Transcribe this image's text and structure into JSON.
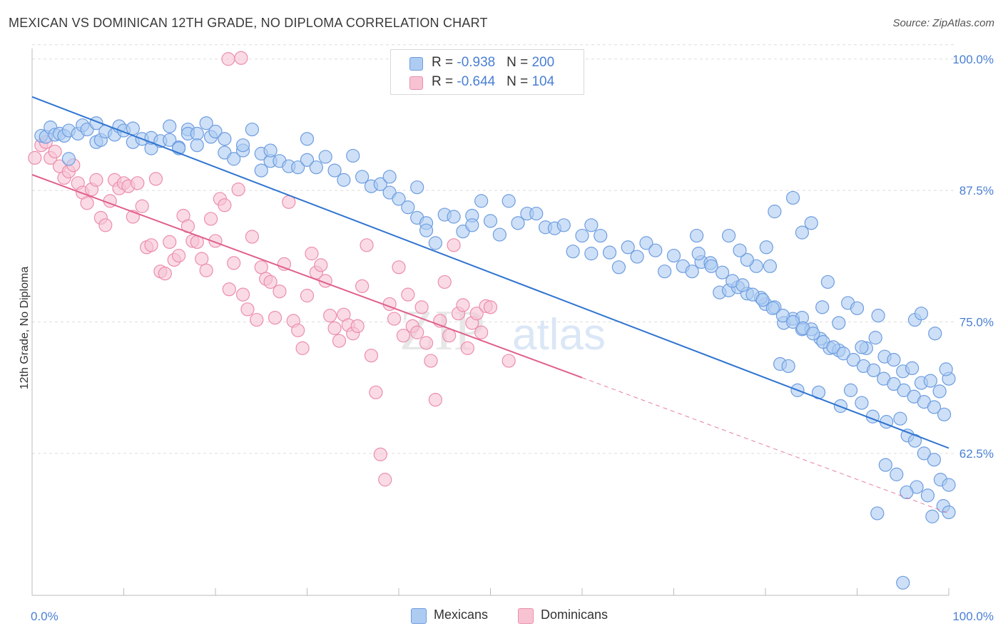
{
  "title": "MEXICAN VS DOMINICAN 12TH GRADE, NO DIPLOMA CORRELATION CHART",
  "source": "Source: ZipAtlas.com",
  "watermark": "ZIPatlas",
  "colors": {
    "mexicans_fill": "#aecbf2",
    "mexicans_stroke": "#6d9de0",
    "mexicans_line": "#2f74d0",
    "dominicans_fill": "#f7c3d3",
    "dominicans_stroke": "#ec8eaa",
    "dominicans_line": "#e0608a",
    "tick_text": "#4a7fd4",
    "grid": "#dddddd"
  },
  "legend": {
    "rows": [
      {
        "r_label": "R = ",
        "r_value": "-0.938",
        "n_label": "N = ",
        "n_value": "200"
      },
      {
        "r_label": "R = ",
        "r_value": "-0.644",
        "n_label": "N = ",
        "n_value": "104"
      }
    ]
  },
  "bottom_legend": {
    "mexicans": "Mexicans",
    "dominicans": "Dominicans"
  },
  "chart_data": {
    "type": "scatter",
    "xlabel": "",
    "ylabel": "12th Grade, No Diploma",
    "xlim": [
      0,
      100
    ],
    "ylim": [
      49,
      101
    ],
    "x_tick_labels": [
      "0.0%",
      "100.0%"
    ],
    "y_ticks": [
      62.5,
      75.0,
      87.5,
      100.0
    ],
    "y_tick_labels": [
      "62.5%",
      "75.0%",
      "87.5%",
      "100.0%"
    ],
    "grid": "horizontal dashed",
    "series": [
      {
        "name": "Mexicans",
        "R": -0.938,
        "N": 200,
        "trend": {
          "x": [
            0,
            100
          ],
          "y": [
            96.4,
            63.0
          ]
        },
        "points": [
          [
            1,
            92.7
          ],
          [
            1.5,
            92.6
          ],
          [
            2,
            93.5
          ],
          [
            2.5,
            92.8
          ],
          [
            3,
            92.9
          ],
          [
            3.5,
            92.7
          ],
          [
            4,
            93.2
          ],
          [
            4,
            90.5
          ],
          [
            5,
            92.9
          ],
          [
            5.5,
            93.7
          ],
          [
            6,
            93.3
          ],
          [
            7,
            92.1
          ],
          [
            7,
            93.9
          ],
          [
            7.5,
            92.3
          ],
          [
            8,
            93.1
          ],
          [
            9,
            92.8
          ],
          [
            9.5,
            93.6
          ],
          [
            10,
            93.2
          ],
          [
            11,
            92.1
          ],
          [
            11,
            93.4
          ],
          [
            12,
            92.4
          ],
          [
            13,
            91.5
          ],
          [
            13,
            92.5
          ],
          [
            14,
            92.2
          ],
          [
            15,
            92.3
          ],
          [
            15,
            93.6
          ],
          [
            16,
            91.6
          ],
          [
            16,
            91.5
          ],
          [
            17,
            93.3
          ],
          [
            17,
            92.9
          ],
          [
            18,
            92.9
          ],
          [
            18,
            91.8
          ],
          [
            19,
            93.9
          ],
          [
            19.5,
            92.6
          ],
          [
            20,
            93.1
          ],
          [
            21,
            91.1
          ],
          [
            21,
            92.4
          ],
          [
            22,
            90.5
          ],
          [
            23,
            91.3
          ],
          [
            23,
            91.8
          ],
          [
            24,
            93.3
          ],
          [
            25,
            91.0
          ],
          [
            25,
            89.4
          ],
          [
            26,
            90.3
          ],
          [
            26,
            91.3
          ],
          [
            27,
            90.3
          ],
          [
            28,
            89.8
          ],
          [
            29,
            89.7
          ],
          [
            30,
            92.4
          ],
          [
            30,
            90.4
          ],
          [
            31,
            89.7
          ],
          [
            32,
            90.7
          ],
          [
            33,
            89.4
          ],
          [
            34,
            88.5
          ],
          [
            35,
            90.8
          ],
          [
            36,
            88.8
          ],
          [
            37,
            87.9
          ],
          [
            38,
            88.1
          ],
          [
            39,
            88.8
          ],
          [
            39,
            87.3
          ],
          [
            40,
            86.7
          ],
          [
            41,
            85.9
          ],
          [
            42,
            87.8
          ],
          [
            42,
            84.9
          ],
          [
            43,
            84.4
          ],
          [
            43,
            83.7
          ],
          [
            44,
            82.5
          ],
          [
            45,
            85.2
          ],
          [
            46,
            85.0
          ],
          [
            47,
            83.6
          ],
          [
            48,
            85.1
          ],
          [
            48,
            84.2
          ],
          [
            49,
            86.5
          ],
          [
            50,
            84.6
          ],
          [
            51,
            83.3
          ],
          [
            52,
            86.5
          ],
          [
            53,
            84.4
          ],
          [
            54,
            85.3
          ],
          [
            55,
            85.3
          ],
          [
            56,
            84.0
          ],
          [
            57,
            83.9
          ],
          [
            58,
            84.2
          ],
          [
            59,
            81.7
          ],
          [
            60,
            83.2
          ],
          [
            61,
            84.2
          ],
          [
            61,
            81.5
          ],
          [
            62,
            83.2
          ],
          [
            63,
            81.6
          ],
          [
            64,
            80.2
          ],
          [
            65,
            82.1
          ],
          [
            66,
            81.2
          ],
          [
            67,
            82.5
          ],
          [
            68,
            81.8
          ],
          [
            69,
            79.8
          ],
          [
            70,
            81.3
          ],
          [
            71,
            80.3
          ],
          [
            72,
            79.8
          ],
          [
            73,
            80.7
          ],
          [
            74,
            80.6
          ],
          [
            75,
            77.8
          ],
          [
            76,
            78.0
          ],
          [
            77,
            78.3
          ],
          [
            78,
            77.7
          ],
          [
            79,
            80.3
          ],
          [
            80,
            76.7
          ],
          [
            81,
            76.4
          ],
          [
            82,
            74.9
          ],
          [
            83,
            75.3
          ],
          [
            84,
            74.3
          ],
          [
            85,
            74.3
          ],
          [
            86,
            73.4
          ],
          [
            87,
            72.5
          ],
          [
            88,
            72.3
          ],
          [
            89,
            76.8
          ],
          [
            90,
            76.3
          ],
          [
            91,
            72.5
          ],
          [
            92,
            73.5
          ],
          [
            93,
            71.7
          ],
          [
            94,
            71.4
          ],
          [
            95,
            70.3
          ],
          [
            96,
            70.6
          ],
          [
            97,
            69.2
          ],
          [
            98,
            69.4
          ],
          [
            99,
            68.4
          ],
          [
            100,
            69.6
          ],
          [
            72.5,
            83.2
          ],
          [
            78,
            80.9
          ],
          [
            80.5,
            80.3
          ],
          [
            85,
            84.4
          ],
          [
            79.5,
            77.3
          ],
          [
            84,
            75.4
          ],
          [
            86.2,
            76.4
          ],
          [
            88,
            74.9
          ],
          [
            90.5,
            72.6
          ],
          [
            92.3,
            75.6
          ],
          [
            96.3,
            75.2
          ],
          [
            97,
            75.8
          ],
          [
            98.5,
            73.9
          ],
          [
            99.7,
            70.5
          ],
          [
            81.6,
            71.0
          ],
          [
            82.5,
            70.8
          ],
          [
            83.5,
            68.5
          ],
          [
            85.8,
            68.3
          ],
          [
            88.2,
            67.0
          ],
          [
            89.3,
            68.5
          ],
          [
            90.5,
            67.3
          ],
          [
            91.7,
            66.0
          ],
          [
            93.2,
            65.5
          ],
          [
            94.7,
            65.8
          ],
          [
            95.5,
            64.2
          ],
          [
            96.3,
            63.7
          ],
          [
            97.3,
            62.5
          ],
          [
            98.4,
            61.9
          ],
          [
            99.1,
            60.0
          ],
          [
            100,
            59.5
          ],
          [
            72.7,
            81.5
          ],
          [
            74.1,
            80.3
          ],
          [
            75.3,
            79.7
          ],
          [
            76.4,
            78.9
          ],
          [
            77.5,
            78.5
          ],
          [
            78.6,
            77.6
          ],
          [
            79.7,
            77.1
          ],
          [
            80.8,
            76.3
          ],
          [
            81.9,
            75.6
          ],
          [
            83.0,
            75.0
          ],
          [
            84.1,
            74.4
          ],
          [
            85.2,
            73.9
          ],
          [
            86.3,
            73.1
          ],
          [
            87.4,
            72.6
          ],
          [
            88.5,
            72.0
          ],
          [
            89.6,
            71.4
          ],
          [
            90.7,
            70.8
          ],
          [
            91.8,
            70.4
          ],
          [
            92.9,
            69.6
          ],
          [
            94.0,
            69.1
          ],
          [
            95.1,
            68.5
          ],
          [
            96.2,
            67.9
          ],
          [
            97.3,
            67.4
          ],
          [
            98.4,
            66.9
          ],
          [
            99.5,
            66.2
          ],
          [
            97.7,
            58.5
          ],
          [
            96.5,
            59.3
          ],
          [
            95.4,
            58.8
          ],
          [
            94.3,
            60.5
          ],
          [
            93.1,
            61.4
          ],
          [
            92.2,
            56.8
          ],
          [
            99.4,
            57.5
          ],
          [
            100,
            56.9
          ],
          [
            98.2,
            56.5
          ],
          [
            84,
            83.5
          ],
          [
            81,
            85.5
          ],
          [
            83,
            86.8
          ],
          [
            77.2,
            81.8
          ],
          [
            76.0,
            83.2
          ],
          [
            86.8,
            78.8
          ],
          [
            80.1,
            82.1
          ],
          [
            95,
            50.2
          ]
        ]
      },
      {
        "name": "Dominicans",
        "R": -0.644,
        "N": 104,
        "trend": {
          "x": [
            0,
            60
          ],
          "y": [
            89.0,
            69.7
          ]
        },
        "trend_extension": {
          "x": [
            60,
            100
          ],
          "y": [
            69.7,
            56.8
          ]
        },
        "points": [
          [
            0.3,
            90.6
          ],
          [
            1,
            91.8
          ],
          [
            1.5,
            92.1
          ],
          [
            2,
            90.6
          ],
          [
            2.5,
            91.2
          ],
          [
            3,
            89.8
          ],
          [
            3.5,
            88.7
          ],
          [
            4,
            89.3
          ],
          [
            4.5,
            89.9
          ],
          [
            5,
            88.2
          ],
          [
            5.5,
            87.3
          ],
          [
            6,
            86.3
          ],
          [
            6.5,
            87.6
          ],
          [
            7,
            88.5
          ],
          [
            7.5,
            84.9
          ],
          [
            8,
            84.2
          ],
          [
            8.5,
            86.5
          ],
          [
            9,
            88.5
          ],
          [
            9.5,
            87.7
          ],
          [
            10,
            88.2
          ],
          [
            10.5,
            87.9
          ],
          [
            11,
            85.0
          ],
          [
            11.5,
            88.2
          ],
          [
            12,
            86.0
          ],
          [
            12.5,
            82.1
          ],
          [
            13,
            82.3
          ],
          [
            13.5,
            88.6
          ],
          [
            14,
            79.8
          ],
          [
            14.5,
            79.6
          ],
          [
            15,
            82.6
          ],
          [
            15.5,
            80.9
          ],
          [
            16,
            81.3
          ],
          [
            16.5,
            85.1
          ],
          [
            17,
            84.1
          ],
          [
            17.5,
            82.7
          ],
          [
            18,
            82.6
          ],
          [
            18.5,
            81.0
          ],
          [
            19,
            79.9
          ],
          [
            19.5,
            84.8
          ],
          [
            20,
            82.7
          ],
          [
            20.5,
            86.7
          ],
          [
            21,
            86.1
          ],
          [
            21.5,
            78.1
          ],
          [
            22,
            80.6
          ],
          [
            22.5,
            87.6
          ],
          [
            23,
            77.6
          ],
          [
            23.5,
            76.2
          ],
          [
            24,
            83.1
          ],
          [
            24.5,
            75.2
          ],
          [
            25,
            80.2
          ],
          [
            25.5,
            79.1
          ],
          [
            26,
            78.8
          ],
          [
            26.5,
            75.4
          ],
          [
            27,
            77.9
          ],
          [
            27.5,
            80.5
          ],
          [
            28,
            86.4
          ],
          [
            28.5,
            75.1
          ],
          [
            29,
            74.2
          ],
          [
            29.5,
            72.5
          ],
          [
            30,
            77.5
          ],
          [
            30.5,
            81.5
          ],
          [
            31,
            79.7
          ],
          [
            31.5,
            80.4
          ],
          [
            32,
            78.9
          ],
          [
            32.5,
            75.6
          ],
          [
            33,
            74.4
          ],
          [
            33.5,
            73.2
          ],
          [
            34,
            75.7
          ],
          [
            34.5,
            74.7
          ],
          [
            35,
            73.9
          ],
          [
            35.5,
            74.6
          ],
          [
            36,
            78.4
          ],
          [
            36.5,
            82.3
          ],
          [
            37,
            71.8
          ],
          [
            37.5,
            68.3
          ],
          [
            38,
            62.4
          ],
          [
            38.5,
            60.0
          ],
          [
            39,
            76.7
          ],
          [
            39.5,
            75.3
          ],
          [
            40,
            80.2
          ],
          [
            40.5,
            73.7
          ],
          [
            41,
            77.6
          ],
          [
            41.5,
            74.6
          ],
          [
            42,
            74.0
          ],
          [
            42.5,
            76.4
          ],
          [
            43,
            73.0
          ],
          [
            43.5,
            71.3
          ],
          [
            44,
            67.6
          ],
          [
            44.5,
            75.1
          ],
          [
            45,
            78.8
          ],
          [
            45.5,
            73.7
          ],
          [
            46,
            82.3
          ],
          [
            46.5,
            75.8
          ],
          [
            47,
            76.6
          ],
          [
            47.5,
            72.5
          ],
          [
            48,
            74.9
          ],
          [
            48.5,
            75.8
          ],
          [
            49,
            74.0
          ],
          [
            49.5,
            76.5
          ],
          [
            50,
            76.4
          ],
          [
            52,
            71.3
          ],
          [
            21.4,
            100.0
          ],
          [
            22.8,
            100.1
          ]
        ]
      }
    ]
  }
}
